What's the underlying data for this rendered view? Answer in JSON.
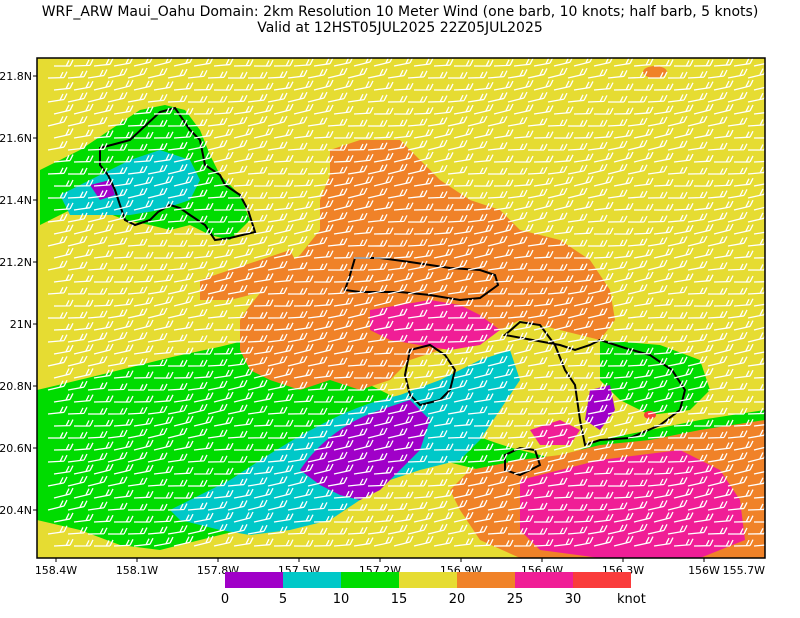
{
  "title": {
    "line1": "WRF_ARW Maui_Oahu Domain: 2km Resolution  10 Meter Wind (one barb, 10 knots; half barb, 5 knots)",
    "line2": "Valid at 12HST05JUL2025  22Z05JUL2025"
  },
  "axes": {
    "lat_ticks": [
      "21.8N",
      "21.6N",
      "21.4N",
      "21.2N",
      "21N",
      "20.8N",
      "20.6N",
      "20.4N"
    ],
    "lon_ticks": [
      "158.4W",
      "158.1W",
      "157.8W",
      "157.5W",
      "157.2W",
      "156.9W",
      "156.6W",
      "156.3W",
      "156W",
      "155.7W"
    ]
  },
  "colorbar": {
    "labels": [
      "0",
      "5",
      "10",
      "15",
      "20",
      "25",
      "30"
    ],
    "unit": "knot",
    "colors": [
      "#a000c8",
      "#00c8c8",
      "#00dc00",
      "#e6dc32",
      "#f08228",
      "#f01e96",
      "#fa3c3c"
    ]
  },
  "colors": {
    "bins": {
      "0-5": "#a000c8",
      "5-10": "#00c8c8",
      "10-15": "#00dc00",
      "15-20": "#e6dc32",
      "20-25": "#f08228",
      "25-30": "#f01e96",
      "30+": "#fa3c3c"
    },
    "barb": "#ffffff",
    "coastline": "#000000"
  }
}
